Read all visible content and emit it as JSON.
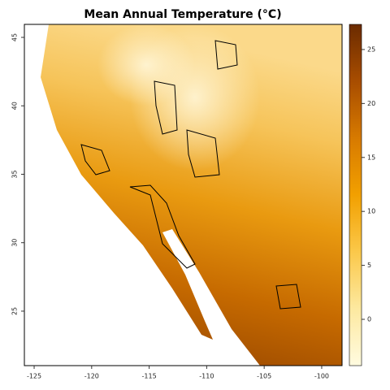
{
  "chart_data": {
    "type": "raster_map",
    "title": "Mean Annual Temperature (°C)",
    "xlim": [
      -125.85,
      -98.23
    ],
    "xticks": [
      -125,
      -120,
      -115,
      -110,
      -105,
      -100
    ],
    "ylim": [
      21.02,
      45.95
    ],
    "yticks": [
      25,
      30,
      35,
      40,
      45
    ],
    "colorbar": {
      "lim": [
        -4.29,
        27.33
      ],
      "ticks": [
        0,
        5,
        10,
        15,
        20,
        25
      ],
      "colors": [
        "#fffbe0",
        "#fde9a0",
        "#fbc84a",
        "#f2a000",
        "#d77a00",
        "#a84d00",
        "#6b2b00"
      ]
    }
  }
}
